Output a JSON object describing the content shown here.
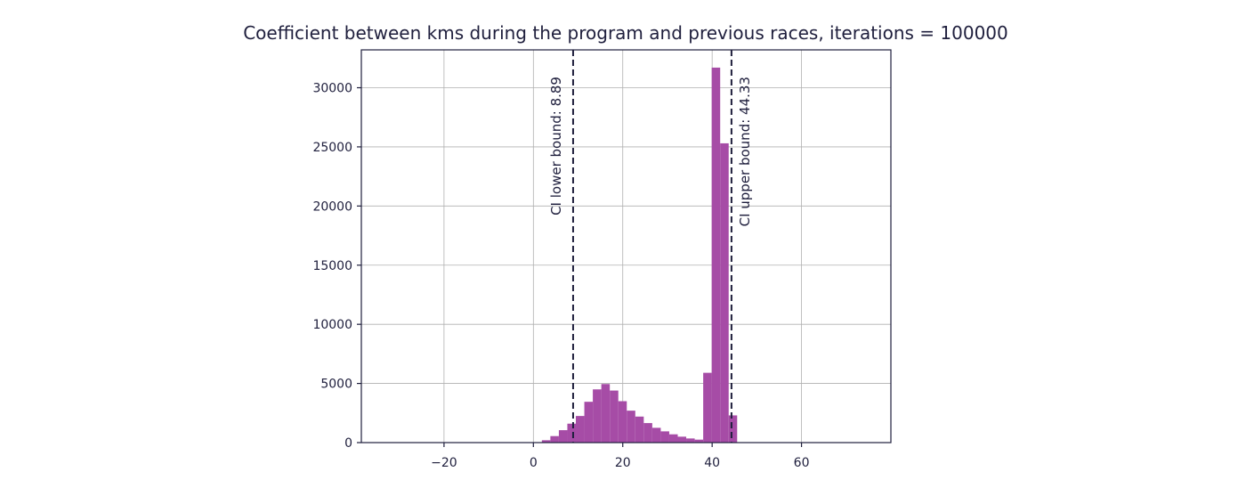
{
  "chart_data": {
    "type": "bar",
    "title": "Coefficient between kms during the program and previous races, iterations = 100000",
    "xlabel": "",
    "ylabel": "",
    "xlim": [
      -38.5,
      80
    ],
    "ylim": [
      0,
      33200
    ],
    "xticks": [
      -20,
      0,
      20,
      40,
      60
    ],
    "xtick_labels": [
      "−20",
      "0",
      "20",
      "40",
      "60"
    ],
    "yticks": [
      0,
      5000,
      10000,
      15000,
      20000,
      25000,
      30000
    ],
    "ytick_labels": [
      "0",
      "5000",
      "10000",
      "15000",
      "20000",
      "25000",
      "30000"
    ],
    "grid": true,
    "bar_color": "#a64ca6",
    "line_color": "#1f1f3d",
    "bin_width": 1.9,
    "bins": [
      {
        "x": -38.0,
        "count": 0
      },
      {
        "x": 0.0,
        "count": 30
      },
      {
        "x": 1.9,
        "count": 200
      },
      {
        "x": 3.8,
        "count": 550
      },
      {
        "x": 5.7,
        "count": 1050
      },
      {
        "x": 7.6,
        "count": 1600
      },
      {
        "x": 9.5,
        "count": 2250
      },
      {
        "x": 11.4,
        "count": 3450
      },
      {
        "x": 13.3,
        "count": 4500
      },
      {
        "x": 15.2,
        "count": 4950
      },
      {
        "x": 17.1,
        "count": 4400
      },
      {
        "x": 19.0,
        "count": 3500
      },
      {
        "x": 20.9,
        "count": 2700
      },
      {
        "x": 22.8,
        "count": 2200
      },
      {
        "x": 24.7,
        "count": 1650
      },
      {
        "x": 26.6,
        "count": 1250
      },
      {
        "x": 28.5,
        "count": 950
      },
      {
        "x": 30.4,
        "count": 700
      },
      {
        "x": 32.3,
        "count": 500
      },
      {
        "x": 34.2,
        "count": 350
      },
      {
        "x": 36.1,
        "count": 250
      },
      {
        "x": 38.0,
        "count": 5900
      },
      {
        "x": 39.9,
        "count": 31700
      },
      {
        "x": 41.8,
        "count": 25300
      },
      {
        "x": 43.7,
        "count": 2300
      },
      {
        "x": 45.6,
        "count": 0
      }
    ],
    "vlines": [
      {
        "x": 8.89,
        "label": "CI lower bound: 8.89",
        "side": "left"
      },
      {
        "x": 44.33,
        "label": "CI upper bound: 44.33",
        "side": "right"
      }
    ]
  }
}
